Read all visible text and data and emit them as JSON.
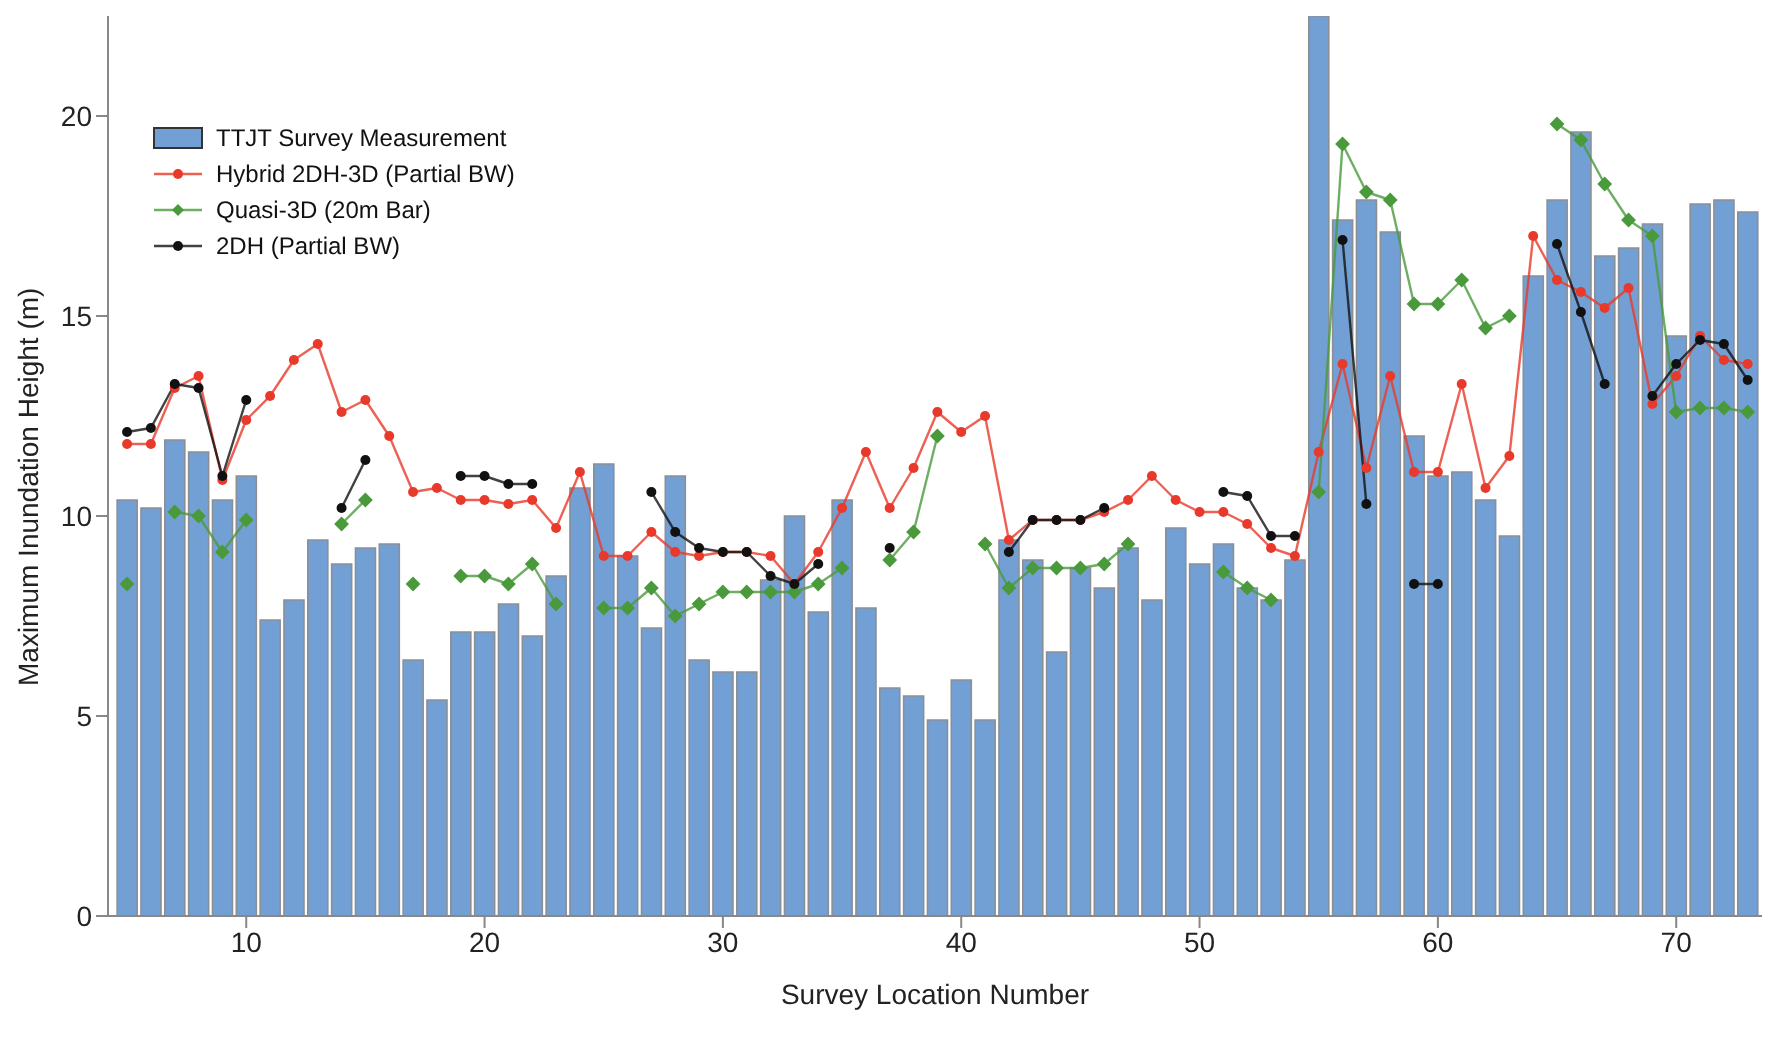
{
  "chart_data": {
    "type": "bar",
    "xlabel": "Survey Location Number",
    "ylabel": "Maximum Inundation Height (m)",
    "x": [
      5,
      6,
      7,
      8,
      9,
      10,
      11,
      12,
      13,
      14,
      15,
      16,
      17,
      18,
      19,
      20,
      21,
      22,
      23,
      24,
      25,
      26,
      27,
      28,
      29,
      30,
      31,
      32,
      33,
      34,
      35,
      36,
      37,
      38,
      39,
      40,
      41,
      42,
      43,
      44,
      45,
      46,
      47,
      48,
      49,
      50,
      51,
      52,
      53,
      54,
      55,
      56,
      57,
      58,
      59,
      60,
      61,
      62,
      63,
      64,
      65,
      66,
      67,
      68,
      69,
      70,
      71,
      72,
      73
    ],
    "xlim": [
      4.2,
      73.6
    ],
    "xticks": [
      10,
      20,
      30,
      40,
      50,
      60,
      70
    ],
    "ylim": [
      0,
      22.5
    ],
    "yticks": [
      0,
      5,
      10,
      15,
      20
    ],
    "legend": "top left",
    "grid": false,
    "marker": "circle",
    "series": [
      {
        "name": "TTJT Survey Measurement",
        "color": "#72a0d4",
        "values": [
          10.4,
          10.2,
          11.9,
          11.6,
          10.4,
          11.0,
          7.4,
          7.9,
          9.4,
          8.8,
          9.2,
          9.3,
          6.4,
          5.4,
          7.1,
          7.1,
          7.8,
          7.0,
          8.5,
          10.7,
          11.3,
          9.0,
          7.2,
          11.0,
          6.4,
          6.1,
          6.1,
          8.4,
          10.0,
          7.6,
          10.4,
          7.7,
          5.7,
          5.5,
          4.9,
          5.9,
          4.9,
          9.4,
          8.9,
          6.6,
          8.7,
          8.2,
          9.2,
          7.9,
          9.7,
          8.8,
          9.3,
          8.2,
          7.9,
          8.9,
          22.5,
          17.4,
          17.9,
          17.1,
          12.0,
          11.0,
          11.1,
          10.4,
          9.5,
          16.0,
          17.9,
          19.6,
          16.5,
          16.7,
          17.3,
          14.5,
          17.8,
          17.9,
          17.6
        ]
      },
      {
        "name": "Hybrid 2DH-3D (Partial BW)",
        "type": "line",
        "color": "#e8392a",
        "values": [
          11.8,
          11.8,
          13.2,
          13.5,
          10.9,
          12.4,
          13.0,
          13.9,
          14.3,
          12.6,
          12.9,
          12.0,
          10.6,
          10.7,
          10.4,
          10.4,
          10.3,
          10.4,
          9.7,
          11.1,
          9.0,
          9.0,
          9.6,
          9.1,
          9.0,
          9.1,
          9.1,
          9.0,
          8.3,
          9.1,
          10.2,
          11.6,
          10.2,
          11.2,
          12.6,
          12.1,
          12.5,
          9.4,
          9.9,
          9.9,
          9.9,
          10.1,
          10.4,
          11.0,
          10.4,
          10.1,
          10.1,
          9.8,
          9.2,
          9.0,
          11.6,
          13.8,
          11.2,
          13.5,
          11.1,
          11.1,
          13.3,
          10.7,
          11.5,
          17.0,
          15.9,
          15.6,
          15.2,
          15.7,
          12.8,
          13.5,
          14.5,
          13.9,
          13.8
        ]
      },
      {
        "name": "Quasi-3D (20m Bar)",
        "type": "line",
        "marker": "diamond",
        "color": "#4a9a3c",
        "values": [
          8.3,
          null,
          10.1,
          10.0,
          9.1,
          9.9,
          null,
          null,
          null,
          9.8,
          10.4,
          null,
          8.3,
          null,
          8.5,
          8.5,
          8.3,
          8.8,
          7.8,
          null,
          7.7,
          7.7,
          8.2,
          7.5,
          7.8,
          8.1,
          8.1,
          8.1,
          8.1,
          8.3,
          8.7,
          null,
          8.9,
          9.6,
          12.0,
          null,
          9.3,
          8.2,
          8.7,
          8.7,
          8.7,
          8.8,
          9.3,
          null,
          null,
          null,
          8.6,
          8.2,
          7.9,
          null,
          10.6,
          19.3,
          18.1,
          17.9,
          15.3,
          15.3,
          15.9,
          14.7,
          15.0,
          null,
          19.8,
          19.4,
          18.3,
          17.4,
          17.0,
          12.6,
          12.7,
          12.7,
          12.6
        ]
      },
      {
        "name": "2DH (Partial BW)",
        "type": "line",
        "color": "#111111",
        "values": [
          12.1,
          12.2,
          13.3,
          13.2,
          11.0,
          12.9,
          null,
          null,
          null,
          10.2,
          11.4,
          null,
          null,
          null,
          11.0,
          11.0,
          10.8,
          10.8,
          null,
          null,
          null,
          null,
          10.6,
          9.6,
          9.2,
          9.1,
          9.1,
          8.5,
          8.3,
          8.8,
          null,
          null,
          9.2,
          null,
          null,
          null,
          null,
          9.1,
          9.9,
          9.9,
          9.9,
          10.2,
          null,
          null,
          null,
          null,
          10.6,
          10.5,
          9.5,
          9.5,
          null,
          16.9,
          10.3,
          null,
          8.3,
          8.3,
          null,
          null,
          null,
          null,
          16.8,
          15.1,
          13.3,
          null,
          13.0,
          13.8,
          14.4,
          14.3,
          13.4
        ]
      }
    ]
  }
}
